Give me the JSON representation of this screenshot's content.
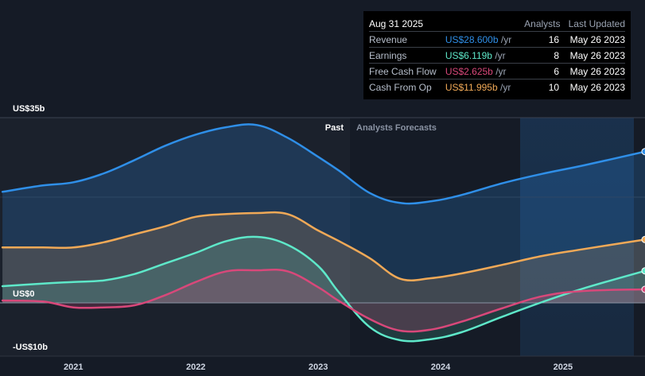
{
  "chart_data": {
    "type": "area",
    "y_axis": {
      "top_label": "US$35b",
      "zero_label": "US$0",
      "bottom_label": "-US$10b",
      "ylim": [
        -10,
        35
      ]
    },
    "x_axis": {
      "ticks": [
        "2021",
        "2022",
        "2023",
        "2024",
        "2025"
      ],
      "xlim": [
        2020.4,
        2025.67
      ]
    },
    "regions": {
      "past": "Past",
      "forecast": "Analysts Forecasts",
      "past_end": 2023.17
    },
    "series": [
      {
        "name": "Revenue",
        "color": "#2f8fe8",
        "x": [
          2020.42,
          2020.75,
          2021.0,
          2021.25,
          2021.5,
          2021.75,
          2022.0,
          2022.25,
          2022.5,
          2022.75,
          2023.0,
          2023.17,
          2023.42,
          2023.67,
          2023.92,
          2024.17,
          2024.5,
          2024.83,
          2025.17,
          2025.67
        ],
        "y": [
          21.0,
          22.2,
          22.8,
          24.5,
          27.0,
          29.7,
          31.8,
          33.2,
          33.6,
          31.2,
          27.6,
          25.0,
          20.8,
          18.9,
          19.2,
          20.4,
          22.6,
          24.4,
          26.0,
          28.6
        ]
      },
      {
        "name": "Cash From Op",
        "color": "#f0a957",
        "x": [
          2020.42,
          2020.75,
          2021.0,
          2021.25,
          2021.5,
          2021.75,
          2022.0,
          2022.25,
          2022.5,
          2022.75,
          2023.0,
          2023.17,
          2023.42,
          2023.67,
          2023.92,
          2024.17,
          2024.5,
          2024.83,
          2025.17,
          2025.67
        ],
        "y": [
          10.5,
          10.5,
          10.5,
          11.5,
          13.0,
          14.5,
          16.3,
          16.8,
          17.0,
          16.8,
          13.7,
          11.7,
          8.5,
          4.6,
          4.7,
          5.6,
          7.2,
          8.9,
          10.2,
          12.0
        ]
      },
      {
        "name": "Earnings",
        "color": "#5ee8c9",
        "x": [
          2020.42,
          2020.75,
          2021.0,
          2021.25,
          2021.5,
          2021.75,
          2022.0,
          2022.25,
          2022.5,
          2022.75,
          2023.0,
          2023.17,
          2023.42,
          2023.67,
          2023.92,
          2024.17,
          2024.5,
          2024.83,
          2025.17,
          2025.67
        ],
        "y": [
          3.2,
          3.7,
          4.0,
          4.3,
          5.5,
          7.5,
          9.5,
          11.7,
          12.5,
          11.0,
          7.0,
          2.0,
          -4.5,
          -7.0,
          -6.8,
          -5.5,
          -2.6,
          0.2,
          2.8,
          6.1
        ]
      },
      {
        "name": "Free Cash Flow",
        "color": "#d8487a",
        "x": [
          2020.42,
          2020.75,
          2021.0,
          2021.25,
          2021.5,
          2021.75,
          2022.0,
          2022.25,
          2022.5,
          2022.75,
          2023.0,
          2023.17,
          2023.42,
          2023.67,
          2023.92,
          2024.17,
          2024.5,
          2024.83,
          2025.17,
          2025.67
        ],
        "y": [
          0.5,
          0.3,
          -0.8,
          -0.8,
          -0.4,
          1.5,
          4.0,
          6.0,
          6.2,
          6.0,
          3.0,
          0.4,
          -3.0,
          -5.2,
          -5.0,
          -3.5,
          -1.0,
          1.3,
          2.3,
          2.6
        ]
      }
    ]
  },
  "tooltip": {
    "date": "Aug 31 2025",
    "header_analysts": "Analysts",
    "header_updated": "Last Updated",
    "rows": [
      {
        "name": "Revenue",
        "value": "US$28.600b",
        "unit": "/yr",
        "analysts": "16",
        "updated": "May 26 2023",
        "color": "#2f8fe8"
      },
      {
        "name": "Earnings",
        "value": "US$6.119b",
        "unit": "/yr",
        "analysts": "8",
        "updated": "May 26 2023",
        "color": "#5ee8c9"
      },
      {
        "name": "Free Cash Flow",
        "value": "US$2.625b",
        "unit": "/yr",
        "analysts": "6",
        "updated": "May 26 2023",
        "color": "#d8487a"
      },
      {
        "name": "Cash From Op",
        "value": "US$11.995b",
        "unit": "/yr",
        "analysts": "10",
        "updated": "May 26 2023",
        "color": "#f0a957"
      }
    ]
  }
}
